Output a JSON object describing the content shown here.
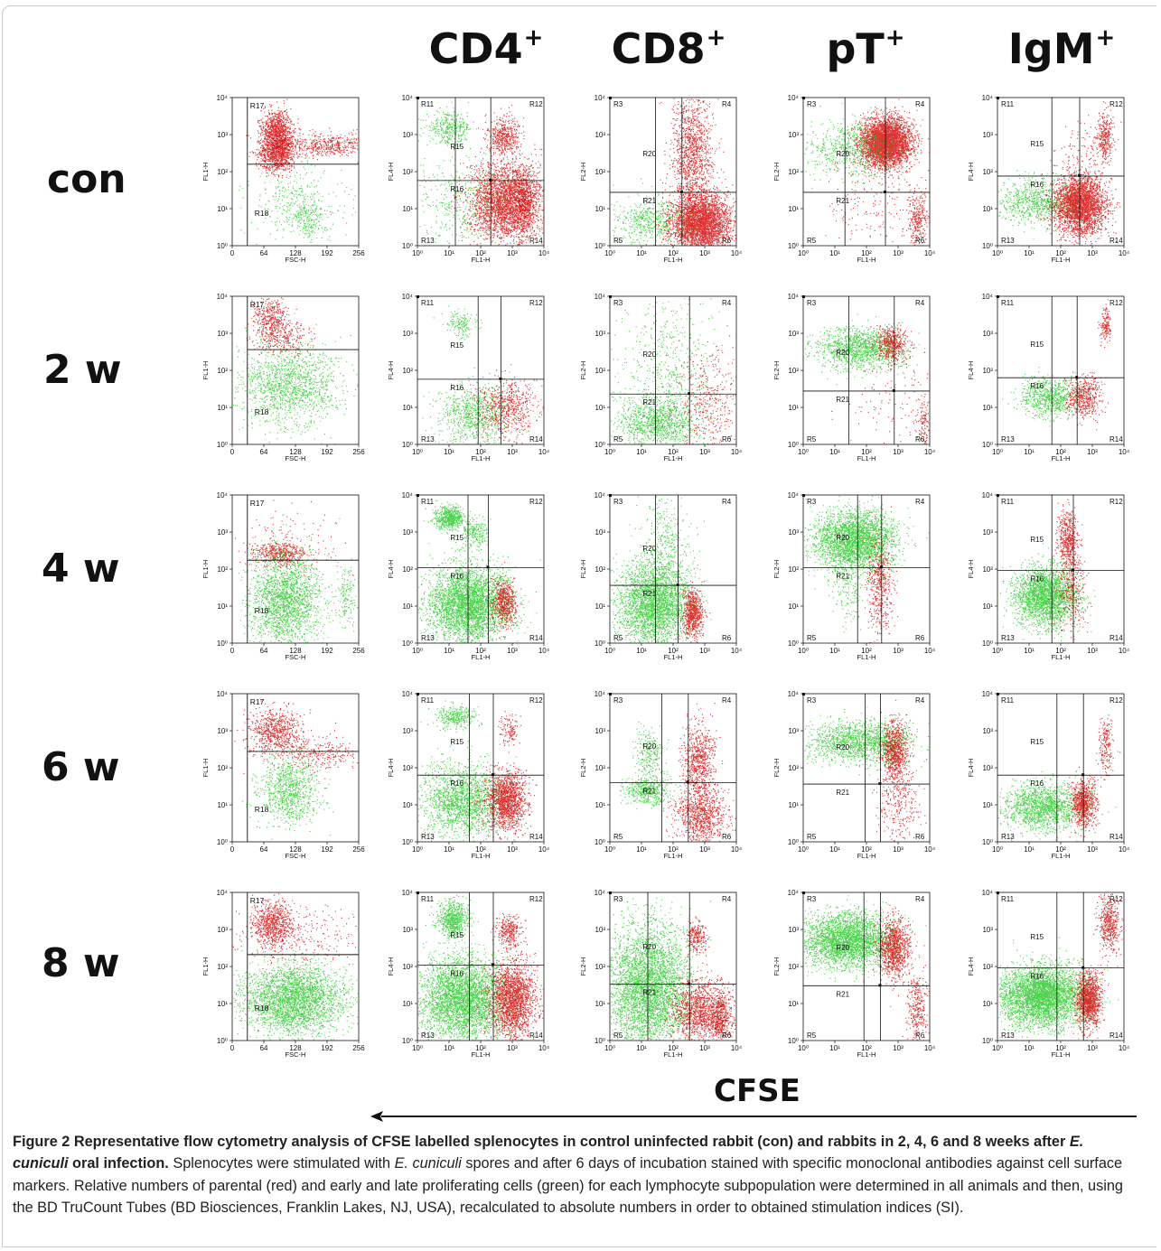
{
  "figure": {
    "column_headers": [
      {
        "base": "CD4",
        "sup": "+"
      },
      {
        "base": "CD8",
        "sup": "+"
      },
      {
        "base": "pT",
        "sup": "+"
      },
      {
        "base": "IgM",
        "sup": "+"
      }
    ],
    "row_labels": [
      "con",
      "2 w",
      "4 w",
      "6 w",
      "8 w"
    ],
    "axis_label": "CFSE",
    "colors": {
      "parental": "#d40000",
      "proliferating": "#1fc81f",
      "ink": "#111111"
    },
    "panel_text": {
      "fsc": {
        "xlabel": "FSC-H",
        "ylabel": "FL1-H",
        "xticks": [
          "0",
          "64",
          "128",
          "192",
          "256"
        ],
        "yticks": [
          "10⁰",
          "10¹",
          "10²",
          "10³",
          "10⁴"
        ],
        "regions": [
          "R17",
          "R18"
        ]
      },
      "cd4": {
        "xlabel": "FL1-H",
        "ylabel": "FL4-H",
        "ticks": [
          "10⁰",
          "10¹",
          "10²",
          "10³",
          "10⁴"
        ],
        "regions": [
          "R11",
          "R12",
          "R13",
          "R14",
          "R15",
          "R16"
        ]
      },
      "cd8": {
        "xlabel": "FL1-H",
        "ylabel": "FL2-H",
        "ticks": [
          "10⁰",
          "10¹",
          "10²",
          "10³",
          "10⁴"
        ],
        "regions": [
          "R3",
          "R4",
          "R5",
          "R6",
          "R20",
          "R21"
        ]
      },
      "pt": {
        "xlabel": "FL1-H",
        "ylabel": "FL2-H",
        "ticks": [
          "10⁰",
          "10¹",
          "10²",
          "10³",
          "10⁴"
        ],
        "regions": [
          "R3",
          "R4",
          "R5",
          "R6",
          "R20",
          "R21"
        ]
      },
      "igm": {
        "xlabel": "FL1-H",
        "ylabel": "FL4-H",
        "ticks": [
          "10⁰",
          "10¹",
          "10²",
          "10³",
          "10⁴"
        ],
        "regions": [
          "R11",
          "R12",
          "R13",
          "R14",
          "R15",
          "R16"
        ]
      }
    }
  },
  "caption": {
    "lead": "Figure 2  Representative flow cytometry analysis of CFSE labelled splenocytes in control uninfected rabbit (con) and rabbits in 2, 4, 6 and 8 weeks after ",
    "lead_italic": "E. cuniculi",
    "lead_end": " oral infection.",
    "body_1": " Splenocytes were stimulated with ",
    "body_italic": "E. cuniculi",
    "body_2": " spores and after 6 days of incubation stained with specific monoclonal antibodies against cell surface markers. Relative numbers of parental (red) and early and late proliferating cells (green) for each lymphocyte subpopulation were determined in all animals and then, using the BD TruCount Tubes (BD Biosciences, Franklin Lakes, NJ, USA), recalculated to absolute numbers in order to obtained stimulation indices (SI)."
  }
}
